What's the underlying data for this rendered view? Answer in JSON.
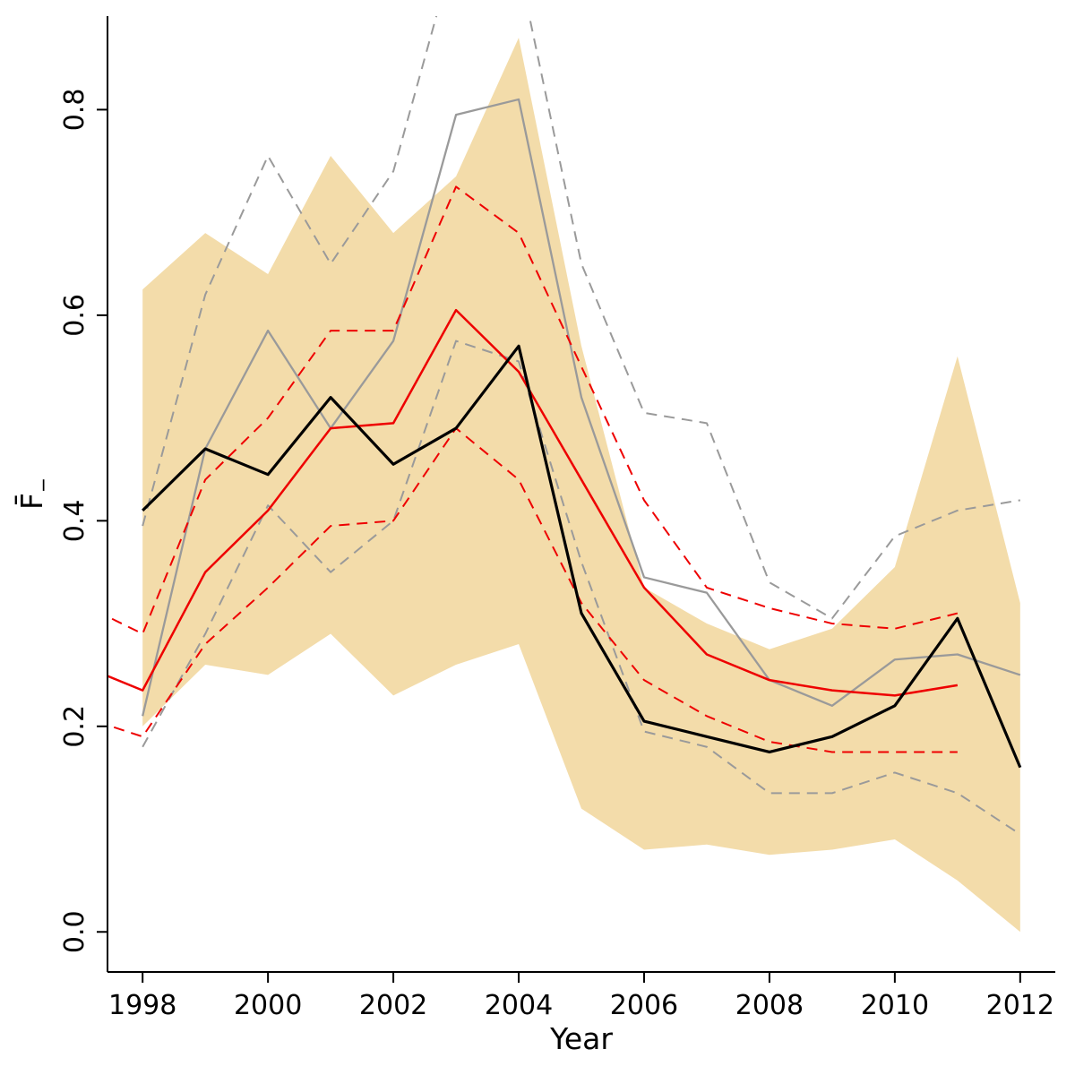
{
  "figure": {
    "background": "#ffffff",
    "axis_color": "#000000",
    "band_color": "#f3dcaa",
    "black_color": "#000000",
    "red_color": "#ee0000",
    "gray_color": "#9a9a9a"
  },
  "chart_data": {
    "type": "line",
    "title": "",
    "xlabel": "Year",
    "ylabel": "F̄₋",
    "ylabel_main": "F̄",
    "ylabel_sub": "−",
    "xlim": [
      1997.44,
      2012.56
    ],
    "ylim": [
      -0.039,
      0.891
    ],
    "grid": false,
    "legend": "none",
    "x_ticks": [
      1998,
      2000,
      2002,
      2004,
      2006,
      2008,
      2010,
      2012
    ],
    "y_ticks": [
      {
        "v": 0.0,
        "label": "0.0"
      },
      {
        "v": 0.2,
        "label": "0.2"
      },
      {
        "v": 0.4,
        "label": "0.4"
      },
      {
        "v": 0.6,
        "label": "0.6"
      },
      {
        "v": 0.8,
        "label": "0.8"
      }
    ],
    "band": {
      "name": "confidence-band",
      "color": "#f3dcaa",
      "x": [
        1998,
        1999,
        2000,
        2001,
        2002,
        2003,
        2004,
        2005,
        2006,
        2007,
        2008,
        2009,
        2010,
        2011,
        2012
      ],
      "upper": [
        0.625,
        0.68,
        0.64,
        0.755,
        0.68,
        0.735,
        0.87,
        0.57,
        0.335,
        0.3,
        0.275,
        0.295,
        0.355,
        0.56,
        0.32
      ],
      "lower": [
        0.2,
        0.26,
        0.25,
        0.29,
        0.23,
        0.26,
        0.28,
        0.12,
        0.08,
        0.085,
        0.075,
        0.08,
        0.09,
        0.05,
        0.0
      ]
    },
    "series": [
      {
        "name": "gray-upper-ci-line",
        "color": "#9a9a9a",
        "width": 2,
        "dash": "12 8",
        "x": [
          1998,
          1999,
          2000,
          2001,
          2002,
          2003,
          2004,
          2005,
          2006,
          2007,
          2008,
          2009,
          2010,
          2011,
          2012
        ],
        "y": [
          0.395,
          0.62,
          0.755,
          0.65,
          0.74,
          0.96,
          0.94,
          0.65,
          0.505,
          0.495,
          0.34,
          0.305,
          0.385,
          0.41,
          0.42
        ]
      },
      {
        "name": "gray-lower-ci-line",
        "color": "#9a9a9a",
        "width": 2,
        "dash": "12 8",
        "x": [
          1998,
          1999,
          2000,
          2001,
          2002,
          2003,
          2004,
          2005,
          2006,
          2007,
          2008,
          2009,
          2010,
          2011,
          2012
        ],
        "y": [
          0.18,
          0.29,
          0.415,
          0.35,
          0.4,
          0.575,
          0.555,
          0.36,
          0.195,
          0.18,
          0.135,
          0.135,
          0.155,
          0.135,
          0.095
        ]
      },
      {
        "name": "gray-estimate-line",
        "color": "#9a9a9a",
        "width": 2.3,
        "dash": null,
        "x": [
          1998,
          1999,
          2000,
          2001,
          2002,
          2003,
          2004,
          2005,
          2006,
          2007,
          2008,
          2009,
          2010,
          2011,
          2012
        ],
        "y": [
          0.21,
          0.47,
          0.585,
          0.49,
          0.575,
          0.795,
          0.81,
          0.52,
          0.345,
          0.33,
          0.245,
          0.22,
          0.265,
          0.27,
          0.25
        ]
      },
      {
        "name": "red-upper-ci-line",
        "color": "#ee0000",
        "width": 2,
        "dash": "12 8",
        "x": [
          1997,
          1998,
          1999,
          2000,
          2001,
          2002,
          2003,
          2004,
          2005,
          2006,
          2007,
          2008,
          2009,
          2010,
          2011
        ],
        "y": [
          0.32,
          0.29,
          0.44,
          0.5,
          0.585,
          0.585,
          0.725,
          0.68,
          0.55,
          0.42,
          0.335,
          0.315,
          0.3,
          0.295,
          0.31
        ]
      },
      {
        "name": "red-lower-ci-line",
        "color": "#ee0000",
        "width": 2,
        "dash": "12 8",
        "x": [
          1997,
          1998,
          1999,
          2000,
          2001,
          2002,
          2003,
          2004,
          2005,
          2006,
          2007,
          2008,
          2009,
          2010,
          2011
        ],
        "y": [
          0.21,
          0.19,
          0.28,
          0.335,
          0.395,
          0.4,
          0.49,
          0.44,
          0.32,
          0.245,
          0.21,
          0.185,
          0.175,
          0.175,
          0.175
        ]
      },
      {
        "name": "red-estimate-line",
        "color": "#ee0000",
        "width": 2.5,
        "dash": null,
        "x": [
          1997,
          1998,
          1999,
          2000,
          2001,
          2002,
          2003,
          2004,
          2005,
          2006,
          2007,
          2008,
          2009,
          2010,
          2011
        ],
        "y": [
          0.26,
          0.235,
          0.35,
          0.41,
          0.49,
          0.495,
          0.605,
          0.545,
          0.44,
          0.335,
          0.27,
          0.245,
          0.235,
          0.23,
          0.24
        ]
      },
      {
        "name": "black-estimate-line",
        "color": "#000000",
        "width": 3.2,
        "dash": null,
        "x": [
          1998,
          1999,
          2000,
          2001,
          2002,
          2003,
          2004,
          2005,
          2006,
          2007,
          2008,
          2009,
          2010,
          2011,
          2012
        ],
        "y": [
          0.41,
          0.47,
          0.445,
          0.52,
          0.455,
          0.49,
          0.57,
          0.31,
          0.205,
          0.19,
          0.175,
          0.19,
          0.22,
          0.305,
          0.16
        ]
      }
    ]
  }
}
